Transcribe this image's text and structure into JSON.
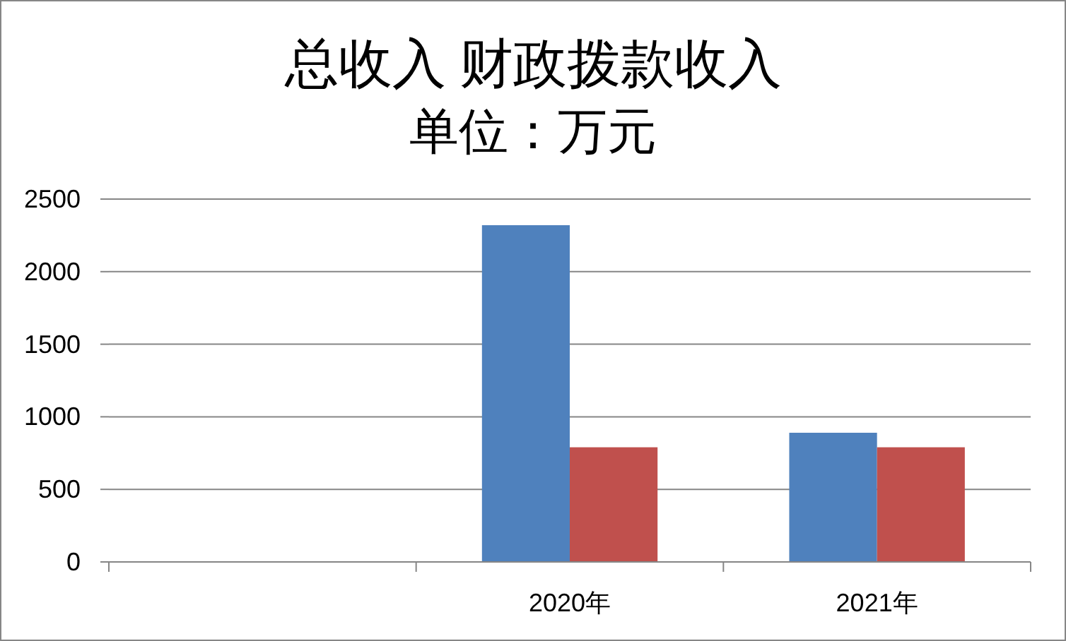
{
  "chart_data": {
    "type": "bar",
    "title": "总收入 财政拨款收入",
    "subtitle": "单位：万元",
    "categories": [
      null,
      "2020年",
      "2021年"
    ],
    "series": [
      {
        "color": "#4f81bd",
        "values": [
          null,
          2320,
          890
        ]
      },
      {
        "color": "#c0504d",
        "values": [
          null,
          790,
          790
        ]
      }
    ],
    "ylim": [
      0,
      2500
    ],
    "yticks": [
      0,
      500,
      1000,
      1500,
      2000,
      2500
    ],
    "grid": "y"
  }
}
